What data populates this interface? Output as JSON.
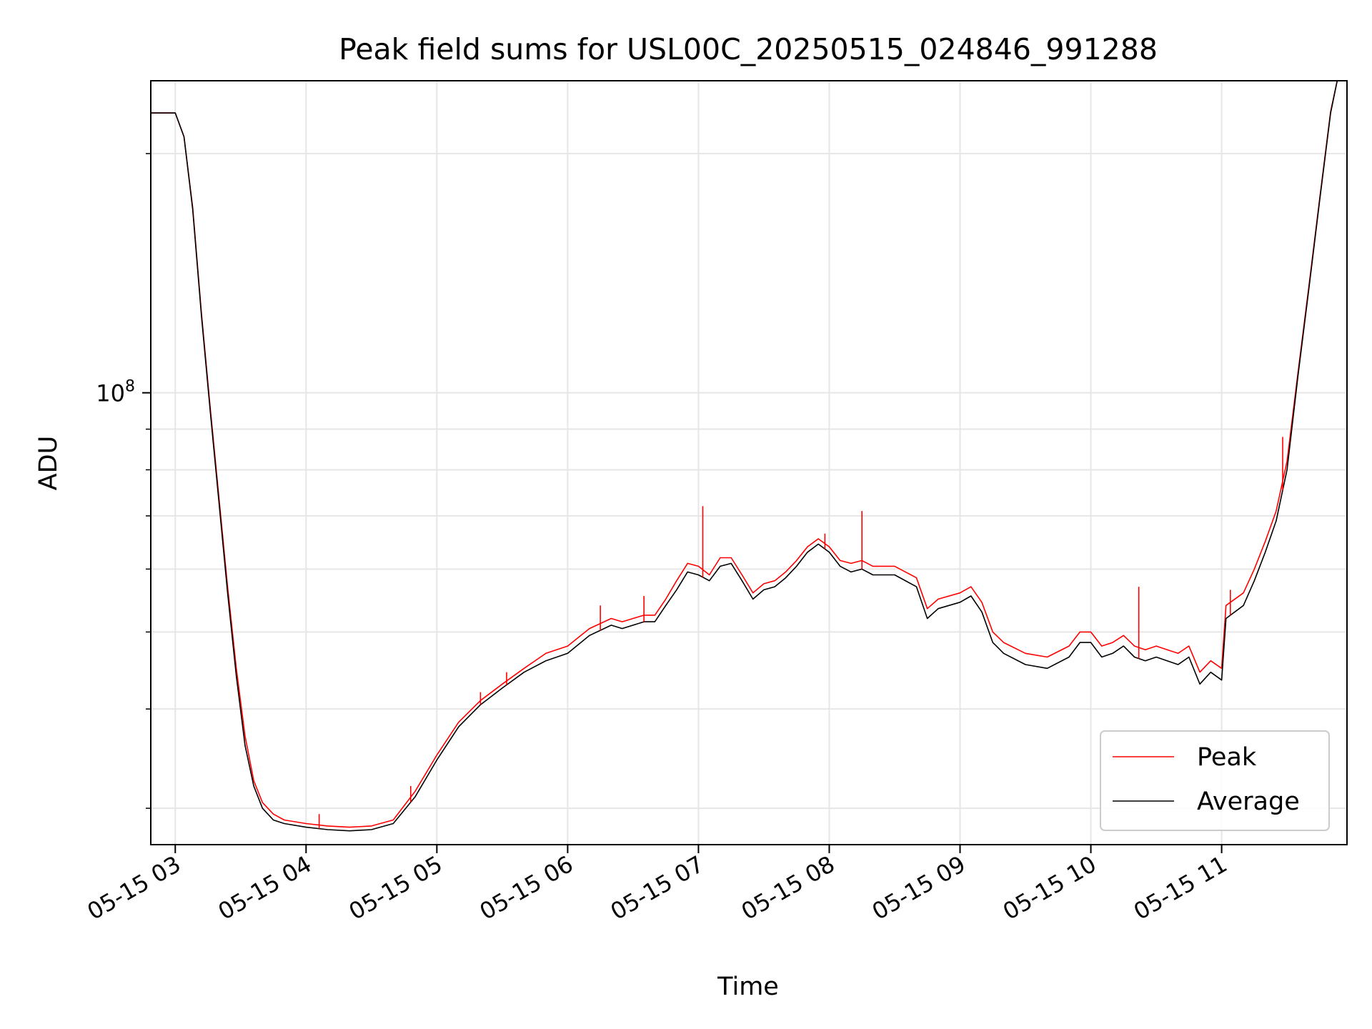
{
  "chart_data": {
    "type": "line",
    "title": "Peak field sums for USL00C_20250515_024846_991288",
    "xlabel": "Time",
    "ylabel": "ADU",
    "y_scale": "log",
    "ylim": [
      27000000,
      247000000
    ],
    "xlim": [
      "2025-05-15 02:48:46",
      "2025-05-15 11:57:30"
    ],
    "x_tick_labels": [
      "05-15 03",
      "05-15 04",
      "05-15 05",
      "05-15 06",
      "05-15 07",
      "05-15 08",
      "05-15 09",
      "05-15 10",
      "05-15 11"
    ],
    "x_ticks": [
      "2025-05-15 03:00",
      "2025-05-15 04:00",
      "2025-05-15 05:00",
      "2025-05-15 06:00",
      "2025-05-15 07:00",
      "2025-05-15 08:00",
      "2025-05-15 09:00",
      "2025-05-15 10:00",
      "2025-05-15 11:00"
    ],
    "y_tick_labels": [
      {
        "base": "10",
        "exp": "8",
        "value": 100000000
      }
    ],
    "y_minor_ticks": [
      30000000,
      40000000,
      50000000,
      60000000,
      70000000,
      80000000,
      90000000,
      200000000
    ],
    "grid": true,
    "legend_position": "lower-right",
    "colors": {
      "Peak": "#ff0000",
      "Average": "#000000"
    },
    "series": [
      {
        "name": "Average",
        "x": [
          "2025-05-15 02:48",
          "2025-05-15 03:00",
          "2025-05-15 03:04",
          "2025-05-15 03:08",
          "2025-05-15 03:12",
          "2025-05-15 03:16",
          "2025-05-15 03:20",
          "2025-05-15 03:24",
          "2025-05-15 03:28",
          "2025-05-15 03:32",
          "2025-05-15 03:36",
          "2025-05-15 03:40",
          "2025-05-15 03:45",
          "2025-05-15 03:50",
          "2025-05-15 04:00",
          "2025-05-15 04:10",
          "2025-05-15 04:20",
          "2025-05-15 04:30",
          "2025-05-15 04:40",
          "2025-05-15 04:50",
          "2025-05-15 05:00",
          "2025-05-15 05:10",
          "2025-05-15 05:20",
          "2025-05-15 05:30",
          "2025-05-15 05:40",
          "2025-05-15 05:50",
          "2025-05-15 06:00",
          "2025-05-15 06:10",
          "2025-05-15 06:20",
          "2025-05-15 06:25",
          "2025-05-15 06:30",
          "2025-05-15 06:35",
          "2025-05-15 06:40",
          "2025-05-15 06:45",
          "2025-05-15 06:50",
          "2025-05-15 06:55",
          "2025-05-15 07:00",
          "2025-05-15 07:05",
          "2025-05-15 07:10",
          "2025-05-15 07:15",
          "2025-05-15 07:20",
          "2025-05-15 07:25",
          "2025-05-15 07:30",
          "2025-05-15 07:35",
          "2025-05-15 07:40",
          "2025-05-15 07:45",
          "2025-05-15 07:50",
          "2025-05-15 07:55",
          "2025-05-15 08:00",
          "2025-05-15 08:05",
          "2025-05-15 08:10",
          "2025-05-15 08:15",
          "2025-05-15 08:20",
          "2025-05-15 08:30",
          "2025-05-15 08:40",
          "2025-05-15 08:45",
          "2025-05-15 08:50",
          "2025-05-15 09:00",
          "2025-05-15 09:05",
          "2025-05-15 09:10",
          "2025-05-15 09:15",
          "2025-05-15 09:20",
          "2025-05-15 09:30",
          "2025-05-15 09:40",
          "2025-05-15 09:50",
          "2025-05-15 09:55",
          "2025-05-15 10:00",
          "2025-05-15 10:05",
          "2025-05-15 10:10",
          "2025-05-15 10:15",
          "2025-05-15 10:20",
          "2025-05-15 10:25",
          "2025-05-15 10:30",
          "2025-05-15 10:35",
          "2025-05-15 10:40",
          "2025-05-15 10:45",
          "2025-05-15 10:50",
          "2025-05-15 10:55",
          "2025-05-15 11:00",
          "2025-05-15 11:02",
          "2025-05-15 11:10",
          "2025-05-15 11:15",
          "2025-05-15 11:20",
          "2025-05-15 11:25",
          "2025-05-15 11:30",
          "2025-05-15 11:35",
          "2025-05-15 11:40",
          "2025-05-15 11:45",
          "2025-05-15 11:50",
          "2025-05-15 11:53"
        ],
        "y": [
          225000000,
          225000000,
          210000000,
          170000000,
          125000000,
          95000000,
          73000000,
          56000000,
          44000000,
          36000000,
          32000000,
          30000000,
          29000000,
          28700000,
          28400000,
          28200000,
          28100000,
          28200000,
          28700000,
          31000000,
          34500000,
          38000000,
          40500000,
          42500000,
          44500000,
          46000000,
          47000000,
          49500000,
          51000000,
          50500000,
          51000000,
          51500000,
          51500000,
          54000000,
          56500000,
          59500000,
          59000000,
          58000000,
          60500000,
          61000000,
          58000000,
          55000000,
          56500000,
          57000000,
          58500000,
          60500000,
          63000000,
          64500000,
          63000000,
          60500000,
          59500000,
          60000000,
          59000000,
          59000000,
          57000000,
          52000000,
          53500000,
          54500000,
          55500000,
          53000000,
          48500000,
          47000000,
          45500000,
          45000000,
          46500000,
          48500000,
          48500000,
          46500000,
          47000000,
          48000000,
          46500000,
          46000000,
          46500000,
          46000000,
          45500000,
          46500000,
          43000000,
          44500000,
          43500000,
          52000000,
          54000000,
          58000000,
          63000000,
          69000000,
          80000000,
          105000000,
          135000000,
          175000000,
          225000000,
          247000000
        ]
      },
      {
        "name": "Peak",
        "x": [
          "2025-05-15 02:48",
          "2025-05-15 03:00",
          "2025-05-15 03:04",
          "2025-05-15 03:08",
          "2025-05-15 03:12",
          "2025-05-15 03:16",
          "2025-05-15 03:20",
          "2025-05-15 03:24",
          "2025-05-15 03:28",
          "2025-05-15 03:32",
          "2025-05-15 03:36",
          "2025-05-15 03:40",
          "2025-05-15 03:45",
          "2025-05-15 03:50",
          "2025-05-15 04:00",
          "2025-05-15 04:10",
          "2025-05-15 04:20",
          "2025-05-15 04:30",
          "2025-05-15 04:40",
          "2025-05-15 04:50",
          "2025-05-15 05:00",
          "2025-05-15 05:10",
          "2025-05-15 05:20",
          "2025-05-15 05:30",
          "2025-05-15 05:40",
          "2025-05-15 05:50",
          "2025-05-15 06:00",
          "2025-05-15 06:10",
          "2025-05-15 06:20",
          "2025-05-15 06:25",
          "2025-05-15 06:30",
          "2025-05-15 06:35",
          "2025-05-15 06:40",
          "2025-05-15 06:45",
          "2025-05-15 06:50",
          "2025-05-15 06:55",
          "2025-05-15 07:00",
          "2025-05-15 07:05",
          "2025-05-15 07:10",
          "2025-05-15 07:15",
          "2025-05-15 07:20",
          "2025-05-15 07:25",
          "2025-05-15 07:30",
          "2025-05-15 07:35",
          "2025-05-15 07:40",
          "2025-05-15 07:45",
          "2025-05-15 07:50",
          "2025-05-15 07:55",
          "2025-05-15 08:00",
          "2025-05-15 08:05",
          "2025-05-15 08:10",
          "2025-05-15 08:15",
          "2025-05-15 08:20",
          "2025-05-15 08:30",
          "2025-05-15 08:40",
          "2025-05-15 08:45",
          "2025-05-15 08:50",
          "2025-05-15 09:00",
          "2025-05-15 09:05",
          "2025-05-15 09:10",
          "2025-05-15 09:15",
          "2025-05-15 09:20",
          "2025-05-15 09:30",
          "2025-05-15 09:40",
          "2025-05-15 09:50",
          "2025-05-15 09:55",
          "2025-05-15 10:00",
          "2025-05-15 10:05",
          "2025-05-15 10:10",
          "2025-05-15 10:15",
          "2025-05-15 10:20",
          "2025-05-15 10:25",
          "2025-05-15 10:30",
          "2025-05-15 10:35",
          "2025-05-15 10:40",
          "2025-05-15 10:45",
          "2025-05-15 10:50",
          "2025-05-15 10:55",
          "2025-05-15 11:00",
          "2025-05-15 11:02",
          "2025-05-15 11:10",
          "2025-05-15 11:15",
          "2025-05-15 11:20",
          "2025-05-15 11:25",
          "2025-05-15 11:30",
          "2025-05-15 11:35",
          "2025-05-15 11:40",
          "2025-05-15 11:45",
          "2025-05-15 11:50",
          "2025-05-15 11:53"
        ],
        "y": [
          225000000,
          225000000,
          210000000,
          171000000,
          126000000,
          96000000,
          74000000,
          57000000,
          45000000,
          37000000,
          32500000,
          30500000,
          29500000,
          29000000,
          28700000,
          28500000,
          28400000,
          28500000,
          29000000,
          31500000,
          35000000,
          38500000,
          41000000,
          43000000,
          45000000,
          47000000,
          48000000,
          50500000,
          52000000,
          51500000,
          52000000,
          52500000,
          52500000,
          55000000,
          58000000,
          61000000,
          60500000,
          59000000,
          62000000,
          62000000,
          59000000,
          56000000,
          57500000,
          58000000,
          59500000,
          61500000,
          64000000,
          65500000,
          64000000,
          61500000,
          61000000,
          61500000,
          60500000,
          60500000,
          58500000,
          53500000,
          55000000,
          56000000,
          57000000,
          54500000,
          50000000,
          48500000,
          47000000,
          46500000,
          48000000,
          50000000,
          50000000,
          48000000,
          48500000,
          49500000,
          48000000,
          47500000,
          48000000,
          47500000,
          47000000,
          48000000,
          44500000,
          46000000,
          45000000,
          54000000,
          56000000,
          60000000,
          65000000,
          71000000,
          82000000,
          106000000,
          136000000,
          176000000,
          226000000,
          247000000
        ]
      }
    ],
    "peak_spikes": [
      {
        "x": "2025-05-15 04:06",
        "y": 29500000
      },
      {
        "x": "2025-05-15 04:48",
        "y": 32000000
      },
      {
        "x": "2025-05-15 05:20",
        "y": 42000000
      },
      {
        "x": "2025-05-15 05:32",
        "y": 44500000
      },
      {
        "x": "2025-05-15 06:15",
        "y": 54000000
      },
      {
        "x": "2025-05-15 06:35",
        "y": 55500000
      },
      {
        "x": "2025-05-15 07:02",
        "y": 72000000
      },
      {
        "x": "2025-05-15 07:58",
        "y": 66500000
      },
      {
        "x": "2025-05-15 08:15",
        "y": 71000000
      },
      {
        "x": "2025-05-15 10:22",
        "y": 57000000
      },
      {
        "x": "2025-05-15 11:04",
        "y": 56500000
      },
      {
        "x": "2025-05-15 11:28",
        "y": 88000000
      }
    ],
    "legend": [
      {
        "label": "Peak",
        "color": "#ff0000"
      },
      {
        "label": "Average",
        "color": "#000000"
      }
    ]
  }
}
